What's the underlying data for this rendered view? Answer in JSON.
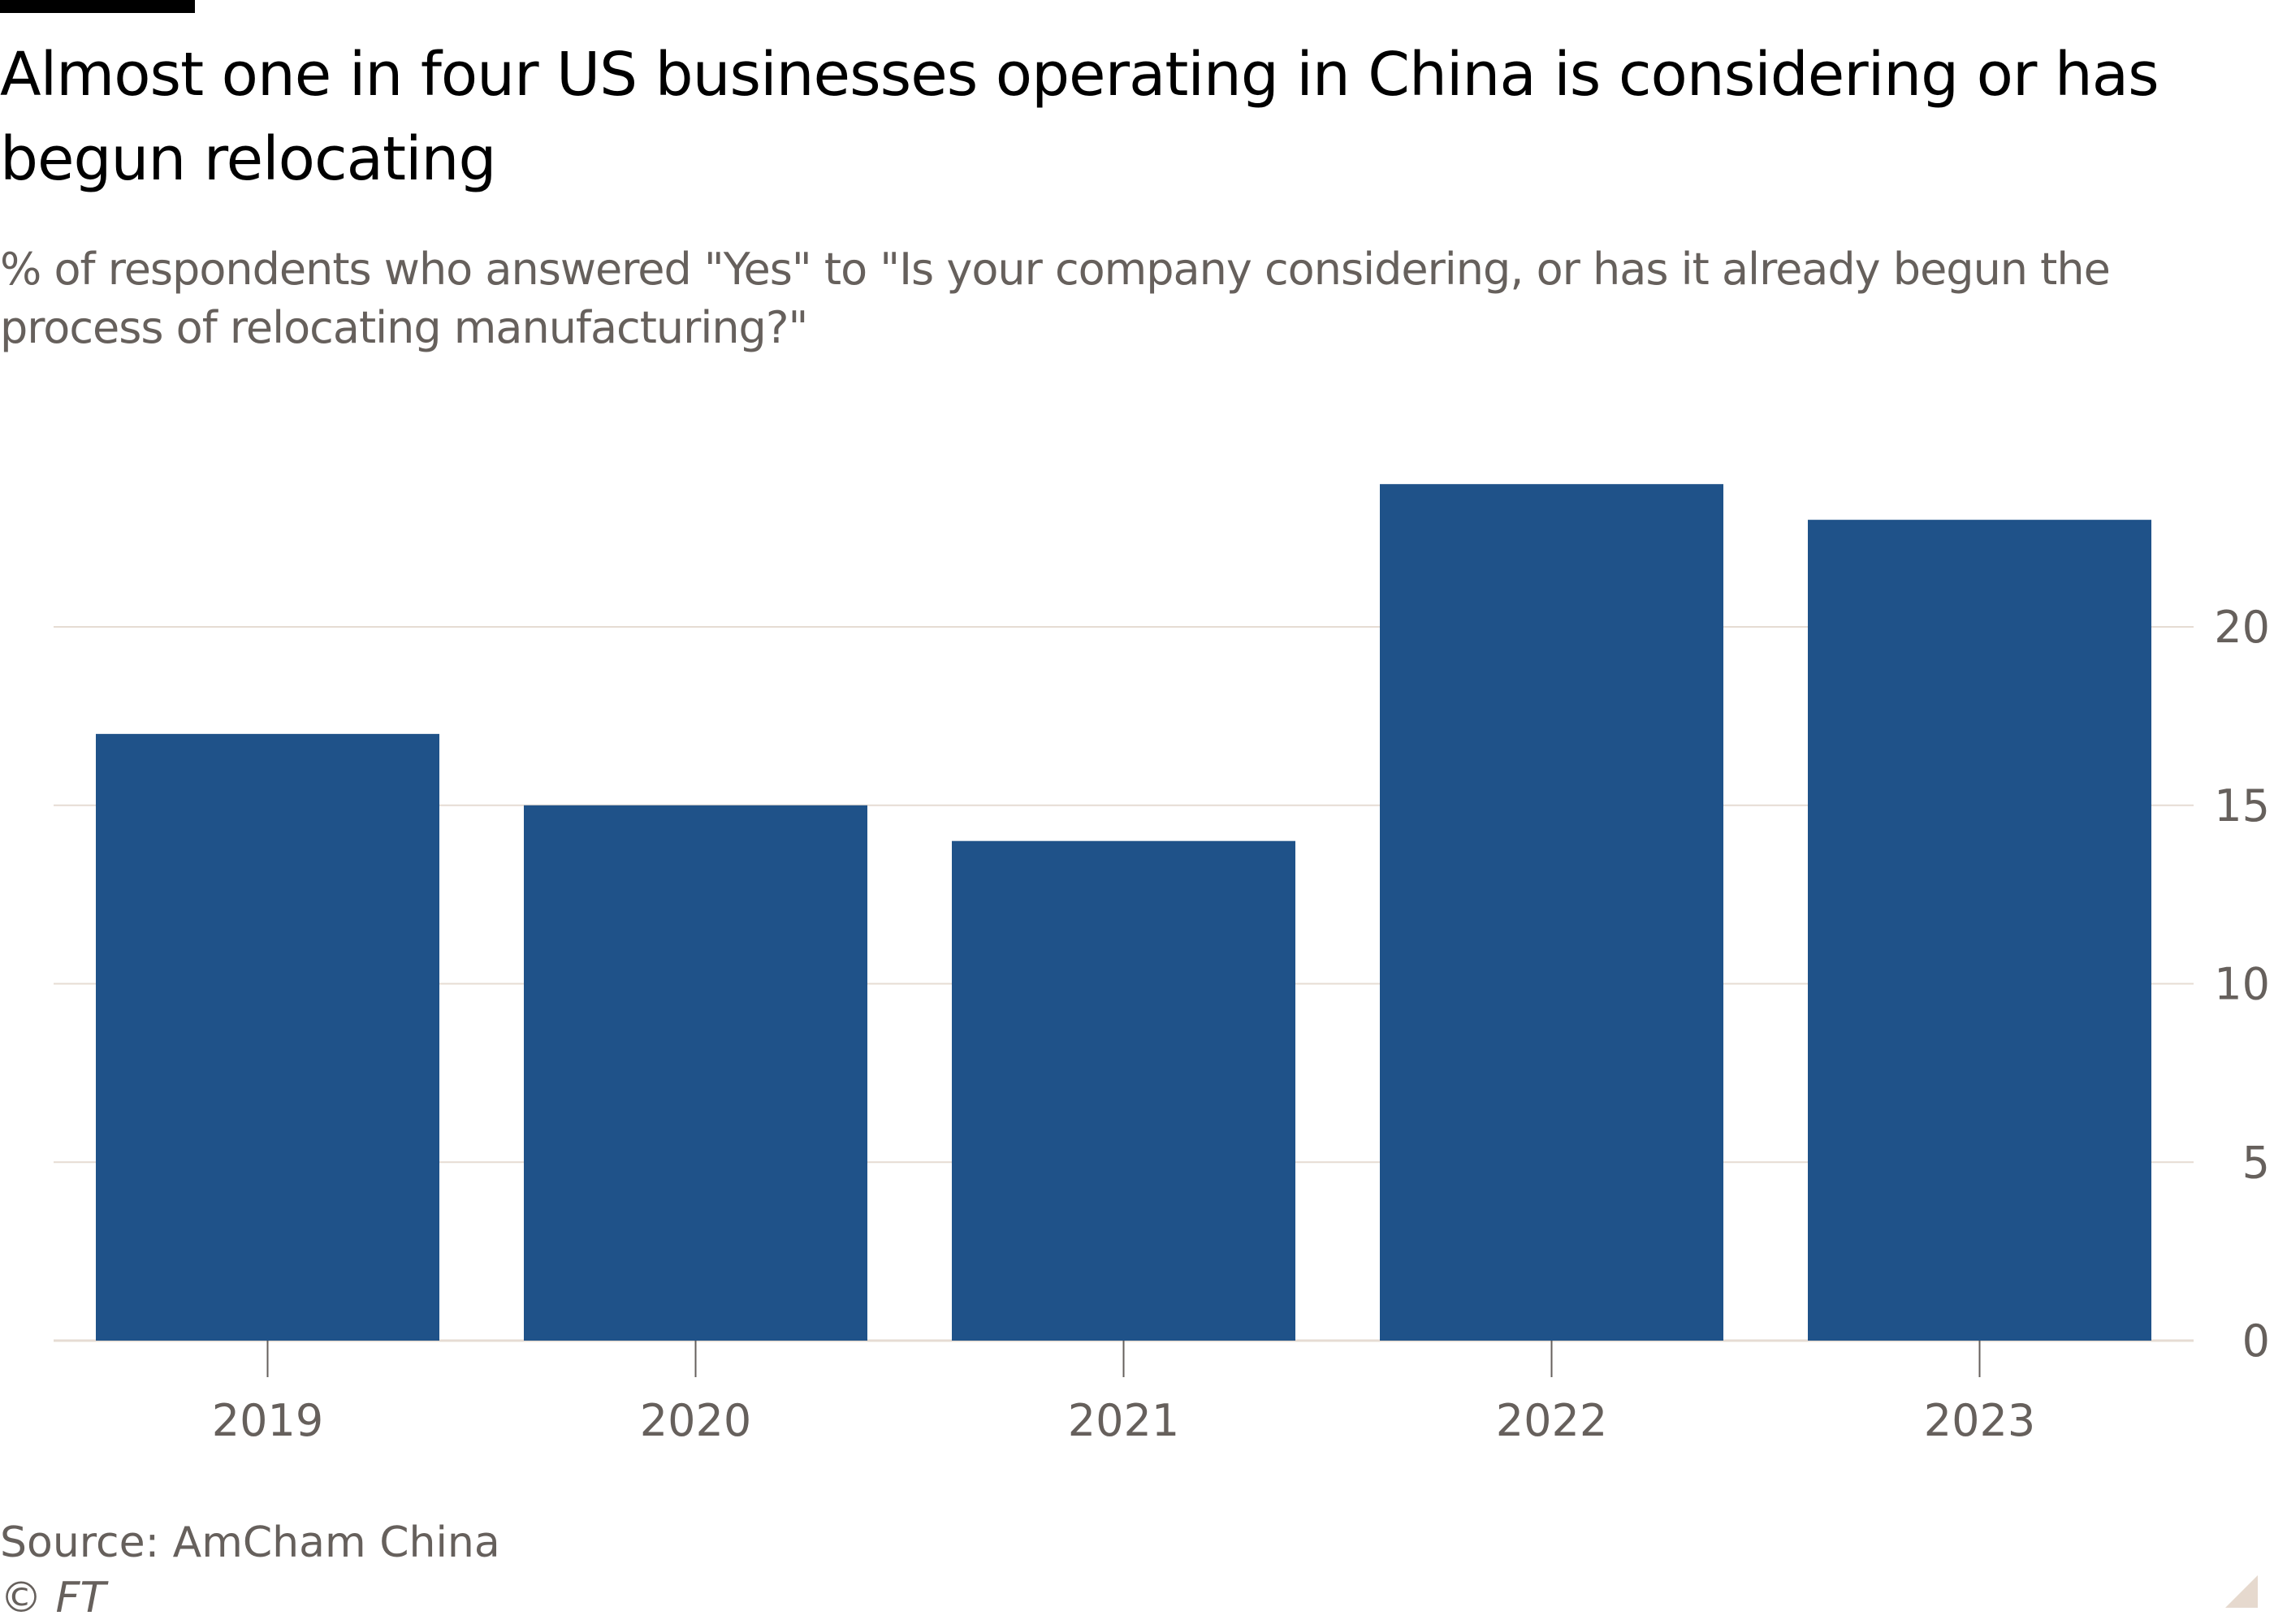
{
  "title": "Almost one in four US businesses operating in China is considering or has begun relocating",
  "subtitle": "% of respondents who answered \"Yes\" to \"Is your company considering, or has it already begun the process of relocating manufacturing?\"",
  "source": "Source: AmCham China",
  "copyright": "© FT",
  "colors": {
    "bar": "#1f5289",
    "grid": "#e6dcd3",
    "text": "#66605c",
    "corner": "#e6d9ce"
  },
  "chart_data": {
    "type": "bar",
    "categories": [
      "2019",
      "2020",
      "2021",
      "2022",
      "2023"
    ],
    "values": [
      17,
      15,
      14,
      24,
      23
    ],
    "ylim": [
      0,
      24
    ],
    "yticks": [
      "0",
      "5",
      "10",
      "15",
      "20"
    ],
    "yaxis_side": "right",
    "grid": true,
    "xlabel": "",
    "ylabel": ""
  }
}
